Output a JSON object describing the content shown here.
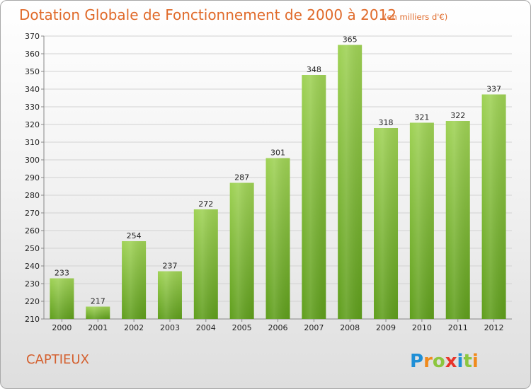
{
  "chart_data": {
    "type": "bar",
    "title": "Dotation Globale de Fonctionnement de 2000 à 2012",
    "subtitle": "(en milliers d'€)",
    "categories": [
      "2000",
      "2001",
      "2002",
      "2003",
      "2004",
      "2005",
      "2006",
      "2007",
      "2008",
      "2009",
      "2010",
      "2011",
      "2012"
    ],
    "values": [
      233,
      217,
      254,
      237,
      272,
      287,
      301,
      348,
      365,
      318,
      321,
      322,
      337
    ],
    "ylim": [
      210,
      370
    ],
    "yticks": [
      210,
      220,
      230,
      240,
      250,
      260,
      270,
      280,
      290,
      300,
      310,
      320,
      330,
      340,
      350,
      360,
      370
    ],
    "grid": true,
    "bar_color": "#7cb82f",
    "title_color": "#e06a2a"
  },
  "commune": "CAPTIEUX",
  "logo": {
    "text": "Proxiti",
    "letters": [
      "P",
      "r",
      "o",
      "x",
      "i",
      "t",
      "i"
    ],
    "colors": [
      "#1f8fd6",
      "#f08a1c",
      "#8cc63f",
      "#e8342a",
      "#1f8fd6",
      "#8cc63f",
      "#f08a1c"
    ]
  }
}
